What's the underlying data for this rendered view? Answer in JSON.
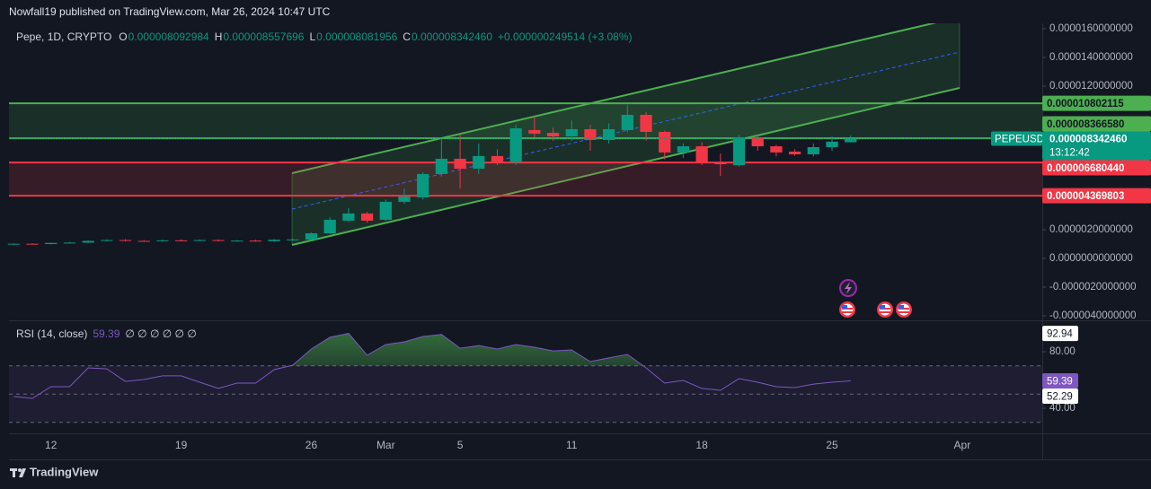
{
  "header": {
    "published": "Nowfall19 published on TradingView.com, Mar 26, 2024 10:47 UTC"
  },
  "footer": {
    "brand": "TradingView"
  },
  "chart_data": [
    {
      "type": "candlestick",
      "title": "Pepe, 1D, CRYPTO",
      "ohlc_labels": [
        {
          "name": "O",
          "value": "0.000008092984"
        },
        {
          "name": "H",
          "value": "0.000008557696"
        },
        {
          "name": "L",
          "value": "0.000008081956"
        },
        {
          "name": "C",
          "value": "0.000008342460"
        }
      ],
      "change": "+0.000000249514 (+3.08%)",
      "symbol": "PEPEUSD",
      "countdown": "13:12:42",
      "last_label": "0.000008342460",
      "categories": [
        null,
        null,
        "12",
        null,
        null,
        null,
        null,
        null,
        null,
        "19",
        null,
        null,
        null,
        null,
        null,
        null,
        "26",
        null,
        null,
        null,
        "Mar",
        null,
        null,
        null,
        "5",
        null,
        null,
        null,
        null,
        null,
        "11",
        null,
        null,
        null,
        null,
        null,
        null,
        "18",
        null,
        null,
        null,
        null,
        null,
        null,
        "25",
        null,
        null,
        null,
        null,
        null,
        null,
        "Apr",
        null,
        null,
        null,
        null
      ],
      "open": [
        1e-06,
        1.02e-06,
        1e-06,
        1.08e-06,
        1.1e-06,
        1.22e-06,
        1.28e-06,
        1.22e-06,
        1.2e-06,
        1.26e-06,
        1.24e-06,
        1.28e-06,
        1.22e-06,
        1.24e-06,
        1.2e-06,
        1.3e-06,
        1.31e-06,
        1.75e-06,
        2.63e-06,
        3.13e-06,
        2.69e-06,
        3.94e-06,
        4.25e-06,
        5.88e-06,
        6.94e-06,
        6.25e-06,
        7.13e-06,
        6.69e-06,
        8.94e-06,
        8.75e-06,
        8.5e-06,
        9e-06,
        8.25e-06,
        8.94e-06,
        1e-05,
        8.81e-06,
        7.38e-06,
        7.81e-06,
        6.69e-06,
        6.5e-06,
        8.44e-06,
        7.81e-06,
        7.44e-06,
        7.25e-06,
        7.75e-06,
        8.092984e-06,
        null,
        null,
        null,
        null,
        null,
        null,
        null,
        null,
        null,
        null
      ],
      "high": [
        1.05e-06,
        1.06e-06,
        1.1e-06,
        1.14e-06,
        1.25e-06,
        1.32e-06,
        1.34e-06,
        1.28e-06,
        1.3e-06,
        1.32e-06,
        1.32e-06,
        1.32e-06,
        1.28e-06,
        1.3e-06,
        1.34e-06,
        1.38e-06,
        1.8e-06,
        2.85e-06,
        3.5e-06,
        3.25e-06,
        4.1e-06,
        4.88e-06,
        6e-06,
        8.3e-06,
        8.63e-06,
        8e-06,
        7.6e-06,
        9.3e-06,
        9.88e-06,
        9.1e-06,
        9.6e-06,
        9.3e-06,
        9.4e-06,
        1.07e-05,
        1.02e-05,
        8.9e-06,
        8e-06,
        8.1e-06,
        7.3e-06,
        8.6e-06,
        8.6e-06,
        7.9e-06,
        7.6e-06,
        8e-06,
        8.5e-06,
        8.557696e-06,
        null,
        null,
        null,
        null,
        null,
        null,
        null,
        null,
        null,
        null
      ],
      "low": [
        9.7e-07,
        9.7e-07,
        9.8e-07,
        1.05e-06,
        1.08e-06,
        1.18e-06,
        1.18e-06,
        1.15e-06,
        1.16e-06,
        1.2e-06,
        1.2e-06,
        1.18e-06,
        1.18e-06,
        1.16e-06,
        1.16e-06,
        1.26e-06,
        1.25e-06,
        1.7e-06,
        2.55e-06,
        2.5e-06,
        2.6e-06,
        3.8e-06,
        4.1e-06,
        5.7e-06,
        4.88e-06,
        5.9e-06,
        6.5e-06,
        6.5e-06,
        8.4e-06,
        8.2e-06,
        8.2e-06,
        7.5e-06,
        8e-06,
        8.8e-06,
        8.2e-06,
        6.9e-06,
        7e-06,
        6.5e-06,
        5.75e-06,
        6.4e-06,
        7.5e-06,
        7.1e-06,
        7.15e-06,
        7.1e-06,
        7.5e-06,
        8.081956e-06,
        null,
        null,
        null,
        null,
        null,
        null,
        null,
        null,
        null,
        null
      ],
      "close": [
        1.02e-06,
        1e-06,
        1.08e-06,
        1.1e-06,
        1.22e-06,
        1.28e-06,
        1.22e-06,
        1.2e-06,
        1.26e-06,
        1.24e-06,
        1.28e-06,
        1.22e-06,
        1.24e-06,
        1.2e-06,
        1.3e-06,
        1.32e-06,
        1.75e-06,
        2.69e-06,
        3.13e-06,
        2.63e-06,
        3.94e-06,
        4.31e-06,
        5.88e-06,
        6.94e-06,
        6.25e-06,
        7.13e-06,
        6.69e-06,
        9.06e-06,
        8.69e-06,
        8.5e-06,
        9e-06,
        8.25e-06,
        9e-06,
        1e-05,
        8.81e-06,
        7.38e-06,
        7.81e-06,
        6.69e-06,
        6.56e-06,
        8.44e-06,
        7.81e-06,
        7.38e-06,
        7.25e-06,
        7.75e-06,
        8.13e-06,
        8.34246e-06,
        null,
        null,
        null,
        null,
        null,
        null,
        null,
        null,
        null,
        null
      ],
      "up_color": "#089981",
      "down_color": "#f23645",
      "ylim": [
        -4.3125e-06,
        1.6375e-05
      ],
      "yticks": [
        {
          "value": 1.6e-05,
          "label": "0.0000160000000"
        },
        {
          "value": 1.4e-05,
          "label": "0.0000140000000"
        },
        {
          "value": 1.2e-05,
          "label": "0.0000120000000"
        },
        {
          "value": 2e-06,
          "label": "0.0000020000000"
        },
        {
          "value": 0,
          "label": "0.0000000000000"
        },
        {
          "value": -2e-06,
          "label": "-0.0000020000000"
        },
        {
          "value": -4e-06,
          "label": "-0.0000040000000"
        }
      ],
      "levels": [
        {
          "value": 1.0802115e-05,
          "label": "0.000010802115",
          "color": "#4caf50"
        },
        {
          "value": 8.36658e-06,
          "label": "0.000008366580",
          "color": "#4caf50"
        },
        {
          "value": 6.68044e-06,
          "label": "0.000006680440",
          "color": "#f23645"
        },
        {
          "value": 4.369803e-06,
          "label": "0.000004369803",
          "color": "#f23645"
        }
      ]
    },
    {
      "type": "line",
      "title": "RSI (14, close)",
      "value_label": "59.39",
      "placeholders": "∅ ∅ ∅ ∅ ∅ ∅",
      "series": [
        {
          "name": "RSI (14, close)",
          "color": "#7e57c2",
          "values": [
            48.3,
            47.0,
            55.2,
            55.2,
            68.6,
            67.9,
            59.0,
            60.3,
            62.9,
            62.9,
            58.4,
            54.0,
            57.8,
            57.8,
            67.3,
            70.5,
            81.9,
            90.2,
            92.94,
            77.5,
            85.1,
            87.0,
            90.8,
            92.2,
            82.5,
            84.4,
            81.9,
            85.1,
            83.2,
            80.6,
            81.3,
            73.0,
            75.6,
            78.1,
            68.6,
            57.8,
            59.7,
            54.0,
            52.7,
            61.0,
            58.4,
            55.2,
            54.6,
            57.1,
            58.4,
            59.39,
            null,
            null,
            null,
            null,
            null,
            null,
            null,
            null,
            null,
            null
          ]
        }
      ],
      "ylim": [
        22.2,
        101.6
      ],
      "yticks": [
        {
          "value": 80,
          "label": "80.00"
        },
        {
          "value": 40,
          "label": "40.00"
        }
      ],
      "levels": [
        70,
        50,
        30
      ],
      "markers": [
        {
          "value": 92.94,
          "label": "92.94",
          "color": "#ffffff"
        },
        {
          "value": 59.39,
          "label": "59.39",
          "color": "#7e57c2"
        },
        {
          "value": 52.29,
          "label": "52.29",
          "color": "#ffffff"
        }
      ]
    }
  ]
}
